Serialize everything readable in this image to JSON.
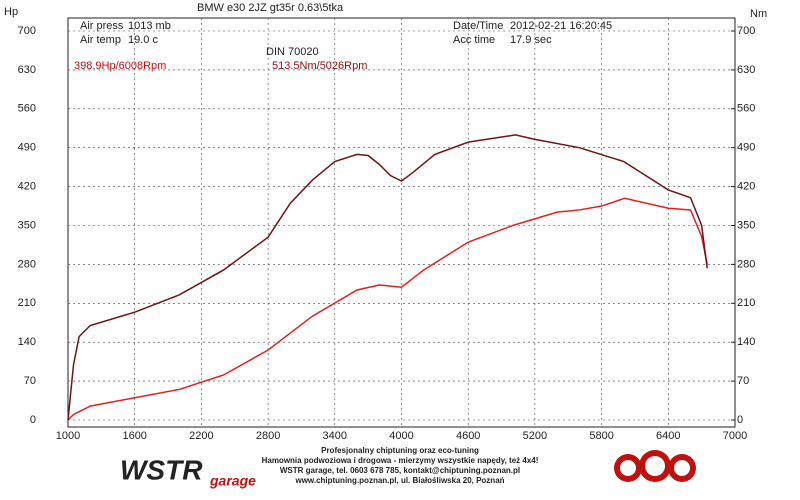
{
  "chart_data": {
    "type": "line",
    "title": "BMW e30 2JZ gt35r 0.63\\5tka",
    "y_label": "Hp",
    "y2_label": "Nm",
    "info": {
      "air_press_label": "Air press",
      "air_press": "1013 mb",
      "air_temp_label": "Air temp",
      "air_temp": "19.0 c",
      "datetime_label": "Date/Time",
      "datetime": "2012-02-21 16:20:45",
      "acc_time_label": "Acc time",
      "acc_time": "17.9 sec",
      "standard": "DIN 70020"
    },
    "annotations": [
      "398.9Hp/6008Rpm",
      "513.5Nm/5026Rpm"
    ],
    "xlim": [
      1000,
      7000
    ],
    "xticks": [
      1000,
      1600,
      2200,
      2800,
      3400,
      4000,
      4600,
      5200,
      5800,
      6400,
      7000
    ],
    "ylim": [
      0,
      700
    ],
    "yticks": [
      0,
      70,
      140,
      210,
      280,
      350,
      420,
      490,
      560,
      630,
      700
    ],
    "y2lim": [
      0,
      700
    ],
    "y2ticks": [
      0,
      70,
      140,
      210,
      280,
      350,
      420,
      490,
      560,
      630,
      700
    ],
    "grid": true,
    "series": [
      {
        "name": "Hp",
        "color": "#e02020",
        "x": [
          1000,
          1050,
          1200,
          1600,
          2000,
          2400,
          2800,
          3200,
          3600,
          3800,
          4000,
          4200,
          4600,
          5000,
          5400,
          5600,
          5800,
          6008,
          6400,
          6600,
          6700,
          6750
        ],
        "values": [
          0,
          10,
          25,
          40,
          55,
          81,
          126,
          187,
          234,
          243,
          239,
          270,
          320,
          350,
          374,
          378,
          385,
          399,
          381,
          378,
          330,
          280
        ]
      },
      {
        "name": "Nm",
        "color": "#6e1414",
        "axis": "y2",
        "x": [
          1000,
          1050,
          1100,
          1200,
          1600,
          2000,
          2400,
          2800,
          3000,
          3200,
          3400,
          3600,
          3700,
          3800,
          3900,
          4000,
          4100,
          4300,
          4600,
          5026,
          5200,
          5600,
          6000,
          6400,
          6600,
          6700,
          6750
        ],
        "values": [
          0,
          100,
          150,
          170,
          194,
          225,
          270,
          329,
          390,
          432,
          465,
          478,
          476,
          460,
          440,
          430,
          445,
          478,
          500,
          513,
          505,
          490,
          465,
          414,
          400,
          350,
          273
        ]
      }
    ],
    "footer": [
      "Profesjonalny chiptuning oraz eco-tuning",
      "Hamownia podwoziowa i drogowa - mierzymy wszystkie napędy, też 4x4!",
      "WSTR garage, tel. 0603 678 785, kontakt@chiptuning.poznan.pl",
      "www.chiptuning.poznan.pl, ul. Białośliwska 20, Poznań"
    ],
    "logo": [
      "WSTR",
      "garage"
    ]
  }
}
